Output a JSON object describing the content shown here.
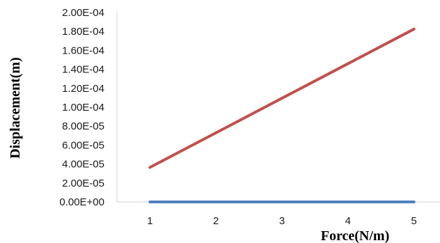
{
  "chart_data": {
    "type": "line",
    "title": "",
    "xlabel": "Force(N/m)",
    "ylabel": "Displacement(m)",
    "x": [
      1,
      2,
      3,
      4,
      5
    ],
    "x_tick_labels": [
      "1",
      "2",
      "3",
      "4",
      "5"
    ],
    "y_tick_labels": [
      "0.00E+00",
      "2.00E-05",
      "4.00E-05",
      "6.00E-05",
      "8.00E-05",
      "1.00E-04",
      "1.20E-04",
      "1.40E-04",
      "1.60E-04",
      "1.80E-04",
      "2.00E-04"
    ],
    "ylim": [
      0,
      0.0002
    ],
    "xlim": [
      0.5,
      5.5
    ],
    "grid": false,
    "legend": "none",
    "series": [
      {
        "values": [
          3.65e-05,
          7.3e-05,
          0.0001095,
          0.000146,
          0.0001825
        ],
        "color": "#c0504d"
      },
      {
        "values": [
          0,
          0,
          0,
          0,
          0
        ],
        "color": "#4f81bd"
      }
    ]
  }
}
